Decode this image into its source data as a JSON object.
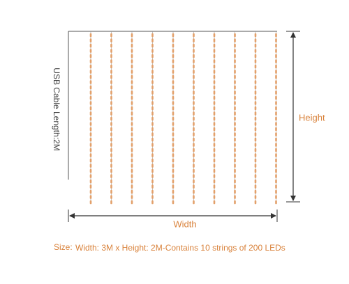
{
  "cable_label": "USB Cable Length:2M",
  "height_label": "Height",
  "width_label": "Width",
  "size": {
    "label": "Size:",
    "text": "Width: 3M x Height: 2M-Contains 10 strings of 200 LEDs"
  }
}
